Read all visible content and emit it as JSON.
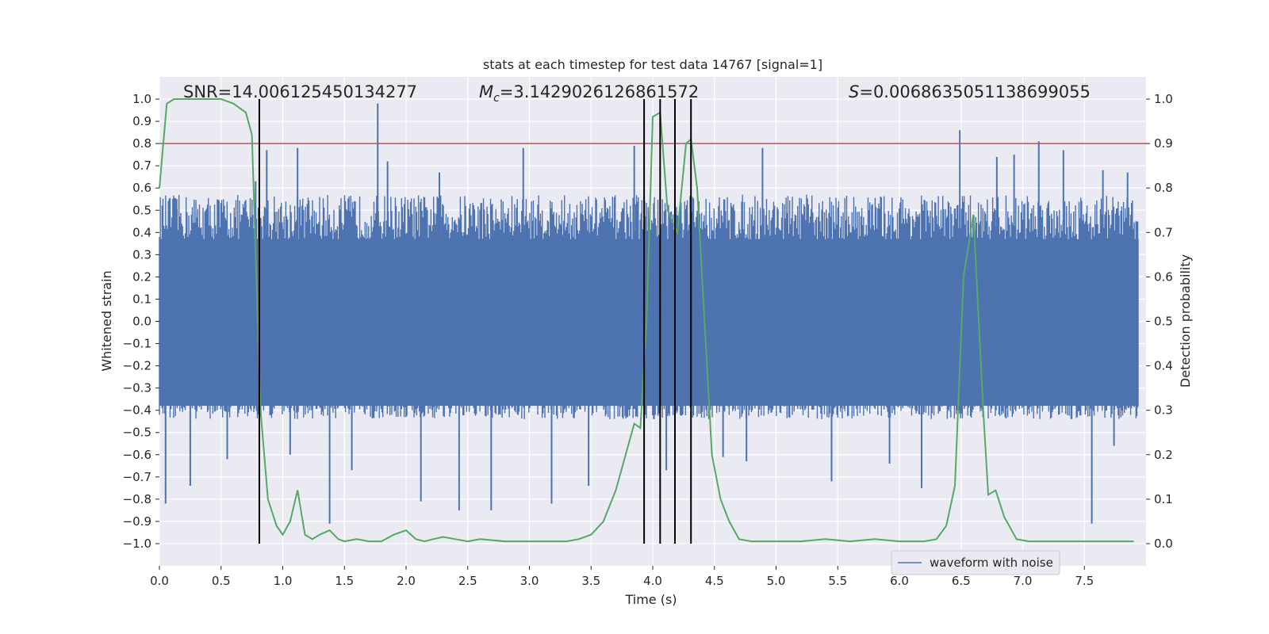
{
  "chart_data": {
    "type": "line",
    "title": "stats at each timestep for test data 14767 [signal=1]",
    "xlabel": "Time (s)",
    "ylabel_left": "Whitened strain",
    "ylabel_right": "Detection probability",
    "xlim": [
      0.0,
      8.0
    ],
    "ylim_left": [
      -1.1,
      1.1
    ],
    "ylim_right": [
      -0.05,
      1.05
    ],
    "xticks": [
      "0.0",
      "0.5",
      "1.0",
      "1.5",
      "2.0",
      "2.5",
      "3.0",
      "3.5",
      "4.0",
      "4.5",
      "5.0",
      "5.5",
      "6.0",
      "6.5",
      "7.0",
      "7.5"
    ],
    "yticks_left": [
      "1.0",
      "0.9",
      "0.8",
      "0.7",
      "0.6",
      "0.5",
      "0.4",
      "0.3",
      "0.2",
      "0.1",
      "0.0",
      "-0.1",
      "-0.2",
      "-0.3",
      "-0.4",
      "-0.5",
      "-0.6",
      "-0.7",
      "-0.8",
      "-0.9",
      "-1.0"
    ],
    "yticks_right": [
      "1.0",
      "0.9",
      "0.8",
      "0.7",
      "0.6",
      "0.5",
      "0.4",
      "0.3",
      "0.2",
      "0.1",
      "0.0"
    ],
    "annotations": {
      "snr": "SNR=14.006125450134277",
      "mc_symbol": "M",
      "mc_sub": "c",
      "mc_value": "=3.1429026126861572",
      "s_symbol": "S",
      "s_value": "=0.0068635051138699055"
    },
    "legend": {
      "label": "waveform with noise",
      "position": "lower-right"
    },
    "threshold": {
      "value": 0.9,
      "axis": "right"
    },
    "vertical_markers": [
      0.81,
      3.93,
      4.06,
      4.18,
      4.31
    ],
    "waveform": {
      "name": "waveform with noise",
      "envelope_positive": 0.45,
      "envelope_negative": -0.42,
      "spikes": [
        [
          0.05,
          -0.82
        ],
        [
          0.14,
          0.55
        ],
        [
          0.25,
          -0.74
        ],
        [
          0.55,
          -0.62
        ],
        [
          0.78,
          0.63
        ],
        [
          0.87,
          0.77
        ],
        [
          1.06,
          -0.6
        ],
        [
          1.12,
          0.78
        ],
        [
          1.38,
          -0.91
        ],
        [
          1.56,
          -0.67
        ],
        [
          1.77,
          0.98
        ],
        [
          1.85,
          0.72
        ],
        [
          2.12,
          -0.81
        ],
        [
          2.27,
          0.67
        ],
        [
          2.43,
          -0.85
        ],
        [
          2.69,
          -0.85
        ],
        [
          2.95,
          0.78
        ],
        [
          3.18,
          -0.82
        ],
        [
          3.48,
          -0.74
        ],
        [
          3.85,
          0.79
        ],
        [
          4.01,
          -0.44
        ],
        [
          4.11,
          -0.67
        ],
        [
          4.18,
          -0.72
        ],
        [
          4.57,
          -0.61
        ],
        [
          4.76,
          -0.63
        ],
        [
          4.89,
          0.78
        ],
        [
          5.45,
          -0.72
        ],
        [
          5.92,
          -0.64
        ],
        [
          6.18,
          -0.75
        ],
        [
          6.49,
          0.86
        ],
        [
          6.79,
          0.74
        ],
        [
          6.93,
          0.75
        ],
        [
          7.13,
          0.81
        ],
        [
          7.33,
          0.77
        ],
        [
          7.56,
          -0.91
        ],
        [
          7.65,
          0.68
        ],
        [
          7.74,
          -0.56
        ],
        [
          7.85,
          0.67
        ]
      ]
    },
    "probability": {
      "name": "Detection probability",
      "x": [
        0.0,
        0.06,
        0.12,
        0.2,
        0.3,
        0.4,
        0.5,
        0.6,
        0.7,
        0.75,
        0.82,
        0.88,
        0.95,
        1.0,
        1.06,
        1.12,
        1.18,
        1.24,
        1.3,
        1.38,
        1.45,
        1.5,
        1.6,
        1.7,
        1.8,
        1.9,
        2.0,
        2.08,
        2.15,
        2.22,
        2.3,
        2.4,
        2.5,
        2.6,
        2.8,
        3.0,
        3.2,
        3.3,
        3.4,
        3.5,
        3.6,
        3.7,
        3.78,
        3.85,
        3.9,
        3.95,
        4.0,
        4.06,
        4.12,
        4.2,
        4.27,
        4.31,
        4.36,
        4.42,
        4.48,
        4.55,
        4.62,
        4.7,
        4.8,
        4.9,
        5.0,
        5.2,
        5.4,
        5.6,
        5.8,
        6.0,
        6.2,
        6.3,
        6.38,
        6.45,
        6.52,
        6.6,
        6.68,
        6.72,
        6.78,
        6.85,
        6.95,
        7.05,
        7.2,
        7.4,
        7.6,
        7.75,
        7.9
      ],
      "y": [
        0.8,
        0.99,
        1.0,
        1.0,
        1.0,
        1.0,
        1.0,
        0.99,
        0.97,
        0.92,
        0.3,
        0.1,
        0.04,
        0.02,
        0.05,
        0.12,
        0.02,
        0.01,
        0.02,
        0.03,
        0.01,
        0.005,
        0.01,
        0.005,
        0.005,
        0.02,
        0.03,
        0.01,
        0.005,
        0.01,
        0.015,
        0.01,
        0.005,
        0.01,
        0.005,
        0.005,
        0.005,
        0.005,
        0.01,
        0.02,
        0.05,
        0.12,
        0.2,
        0.27,
        0.26,
        0.5,
        0.96,
        0.97,
        0.75,
        0.7,
        0.9,
        0.91,
        0.8,
        0.5,
        0.2,
        0.1,
        0.05,
        0.01,
        0.005,
        0.005,
        0.005,
        0.005,
        0.01,
        0.005,
        0.01,
        0.005,
        0.005,
        0.01,
        0.04,
        0.13,
        0.6,
        0.74,
        0.3,
        0.11,
        0.12,
        0.06,
        0.01,
        0.005,
        0.005,
        0.005,
        0.005,
        0.005,
        0.005
      ]
    },
    "colors": {
      "background": "#eaeaf2",
      "grid": "#ffffff",
      "waveform": "#4c72b0",
      "probability": "#55a868",
      "threshold": "#c44e52",
      "markers": "#000000",
      "text": "#262626"
    }
  }
}
